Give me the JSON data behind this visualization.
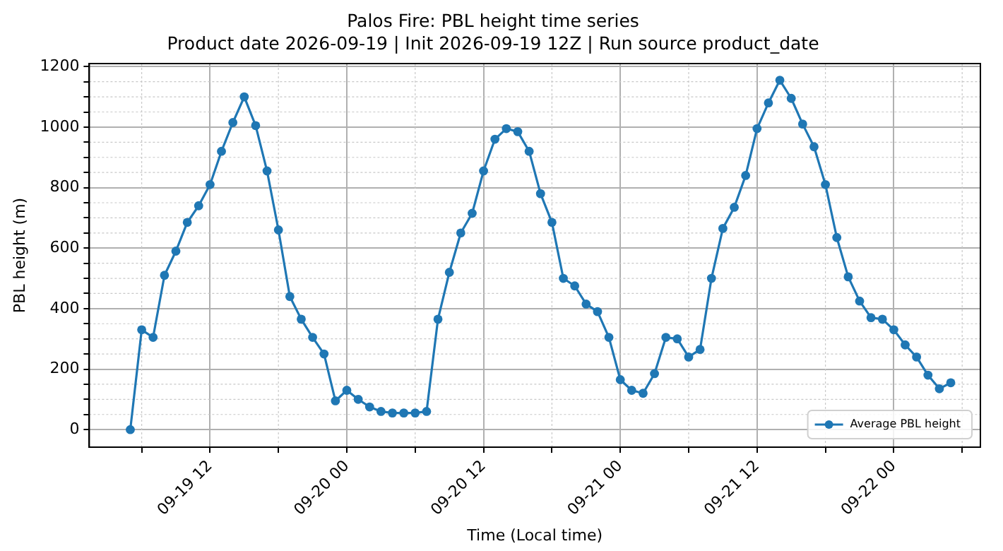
{
  "chart_data": {
    "type": "line",
    "title": "Palos Fire: PBL height time series",
    "subtitle": "Product date 2026-09-19 | Init 2026-09-19 12Z | Run source product_date",
    "xlabel": "Time (Local time)",
    "ylabel": "PBL height (m)",
    "x": [
      "2026-09-19T05:00",
      "2026-09-19T06:00",
      "2026-09-19T07:00",
      "2026-09-19T08:00",
      "2026-09-19T09:00",
      "2026-09-19T10:00",
      "2026-09-19T11:00",
      "2026-09-19T12:00",
      "2026-09-19T13:00",
      "2026-09-19T14:00",
      "2026-09-19T15:00",
      "2026-09-19T16:00",
      "2026-09-19T17:00",
      "2026-09-19T18:00",
      "2026-09-19T19:00",
      "2026-09-19T20:00",
      "2026-09-19T21:00",
      "2026-09-19T22:00",
      "2026-09-19T23:00",
      "2026-09-20T00:00",
      "2026-09-20T01:00",
      "2026-09-20T02:00",
      "2026-09-20T03:00",
      "2026-09-20T04:00",
      "2026-09-20T05:00",
      "2026-09-20T06:00",
      "2026-09-20T07:00",
      "2026-09-20T08:00",
      "2026-09-20T09:00",
      "2026-09-20T10:00",
      "2026-09-20T11:00",
      "2026-09-20T12:00",
      "2026-09-20T13:00",
      "2026-09-20T14:00",
      "2026-09-20T15:00",
      "2026-09-20T16:00",
      "2026-09-20T17:00",
      "2026-09-20T18:00",
      "2026-09-20T19:00",
      "2026-09-20T20:00",
      "2026-09-20T21:00",
      "2026-09-20T22:00",
      "2026-09-20T23:00",
      "2026-09-21T00:00",
      "2026-09-21T01:00",
      "2026-09-21T02:00",
      "2026-09-21T03:00",
      "2026-09-21T04:00",
      "2026-09-21T05:00",
      "2026-09-21T06:00",
      "2026-09-21T07:00",
      "2026-09-21T08:00",
      "2026-09-21T09:00",
      "2026-09-21T10:00",
      "2026-09-21T11:00",
      "2026-09-21T12:00",
      "2026-09-21T13:00",
      "2026-09-21T14:00",
      "2026-09-21T15:00",
      "2026-09-21T16:00",
      "2026-09-21T17:00",
      "2026-09-21T18:00",
      "2026-09-21T19:00",
      "2026-09-21T20:00",
      "2026-09-21T21:00",
      "2026-09-21T22:00",
      "2026-09-21T23:00",
      "2026-09-22T00:00",
      "2026-09-22T01:00",
      "2026-09-22T02:00",
      "2026-09-22T03:00",
      "2026-09-22T04:00",
      "2026-09-22T05:00"
    ],
    "series": [
      {
        "name": "Average PBL height",
        "color": "#1f77b4",
        "values": [
          0,
          330,
          305,
          510,
          590,
          685,
          740,
          810,
          920,
          1015,
          1100,
          1005,
          855,
          660,
          440,
          365,
          305,
          250,
          95,
          130,
          100,
          75,
          60,
          55,
          55,
          55,
          60,
          365,
          520,
          650,
          715,
          855,
          960,
          995,
          985,
          920,
          780,
          685,
          500,
          475,
          415,
          390,
          305,
          165,
          130,
          120,
          185,
          305,
          300,
          240,
          265,
          500,
          665,
          735,
          840,
          995,
          1080,
          1155,
          1095,
          1010,
          935,
          810,
          635,
          505,
          425,
          370,
          365,
          330,
          280,
          240,
          180,
          135,
          155
        ]
      }
    ],
    "xlim": [
      "2026-09-19T01:24",
      "2026-09-22T07:36"
    ],
    "xticks": [
      {
        "value": "2026-09-19T06:00",
        "label": null
      },
      {
        "value": "2026-09-19T12:00",
        "label": "09-19 12"
      },
      {
        "value": "2026-09-19T18:00",
        "label": null
      },
      {
        "value": "2026-09-20T00:00",
        "label": "09-20 00"
      },
      {
        "value": "2026-09-20T06:00",
        "label": null
      },
      {
        "value": "2026-09-20T12:00",
        "label": "09-20 12"
      },
      {
        "value": "2026-09-20T18:00",
        "label": null
      },
      {
        "value": "2026-09-21T00:00",
        "label": "09-21 00"
      },
      {
        "value": "2026-09-21T06:00",
        "label": null
      },
      {
        "value": "2026-09-21T12:00",
        "label": "09-21 12"
      },
      {
        "value": "2026-09-21T18:00",
        "label": null
      },
      {
        "value": "2026-09-22T00:00",
        "label": "09-22 00"
      },
      {
        "value": "2026-09-22T06:00",
        "label": null
      }
    ],
    "ylim": [
      -58,
      1210
    ],
    "yticks": [
      0,
      {
        "value": 50,
        "label": null
      },
      {
        "value": 100,
        "label": null
      },
      {
        "value": 150,
        "label": null
      },
      200,
      {
        "value": 250,
        "label": null
      },
      {
        "value": 300,
        "label": null
      },
      {
        "value": 350,
        "label": null
      },
      400,
      {
        "value": 450,
        "label": null
      },
      {
        "value": 500,
        "label": null
      },
      {
        "value": 550,
        "label": null
      },
      600,
      {
        "value": 650,
        "label": null
      },
      {
        "value": 700,
        "label": null
      },
      {
        "value": 750,
        "label": null
      },
      800,
      {
        "value": 850,
        "label": null
      },
      {
        "value": 900,
        "label": null
      },
      {
        "value": 950,
        "label": null
      },
      1000,
      {
        "value": 1050,
        "label": null
      },
      {
        "value": 1100,
        "label": null
      },
      {
        "value": 1150,
        "label": null
      },
      1200
    ],
    "grid": true,
    "legend": "bottom right",
    "marker": "circle",
    "line_style": "solid"
  }
}
